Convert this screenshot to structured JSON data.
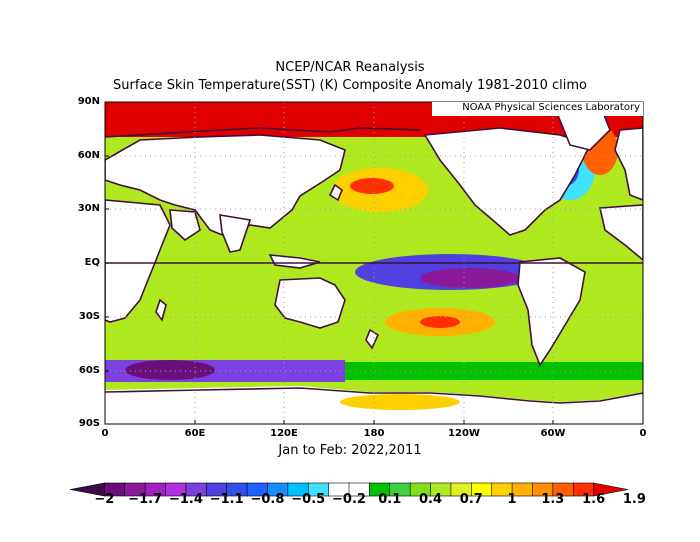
{
  "titles": {
    "line1": "NCEP/NCAR Reanalysis",
    "line2": "Surface Skin Temperature(SST) (K) Composite Anomaly 1981-2010 climo",
    "credit": "NOAA Physical Sciences Laboratory",
    "period": "Jan to Feb: 2022,2011"
  },
  "axes": {
    "lat_labels": [
      "90N",
      "60N",
      "30N",
      "EQ",
      "30S",
      "60S",
      "90S"
    ],
    "lon_labels": [
      "0",
      "60E",
      "120E",
      "180",
      "120W",
      "60W",
      "0"
    ]
  },
  "colorbar": {
    "labels": [
      "-2",
      "-1.7",
      "-1.4",
      "-1.1",
      "-0.8",
      "-0.5",
      "-0.2",
      "0.1",
      "0.4",
      "0.7",
      "1",
      "1.3",
      "1.6",
      "1.9"
    ],
    "colors": [
      "#3a0a4a",
      "#6a0f7a",
      "#8a1a9a",
      "#a020c0",
      "#b030e0",
      "#7a40e0",
      "#5040e0",
      "#3050e6",
      "#2060ff",
      "#1a8cff",
      "#00c0ff",
      "#40e0ff",
      "#ffffff",
      "#ffffff",
      "#00c000",
      "#40d040",
      "#80e020",
      "#b0e820",
      "#e0f020",
      "#ffff00",
      "#ffd000",
      "#ffb000",
      "#ff9000",
      "#ff6000",
      "#ff3000",
      "#e00000"
    ]
  },
  "colors": {
    "land_outline": "#40103a",
    "equator": "#40103a",
    "grid": "#a0a0a0"
  }
}
